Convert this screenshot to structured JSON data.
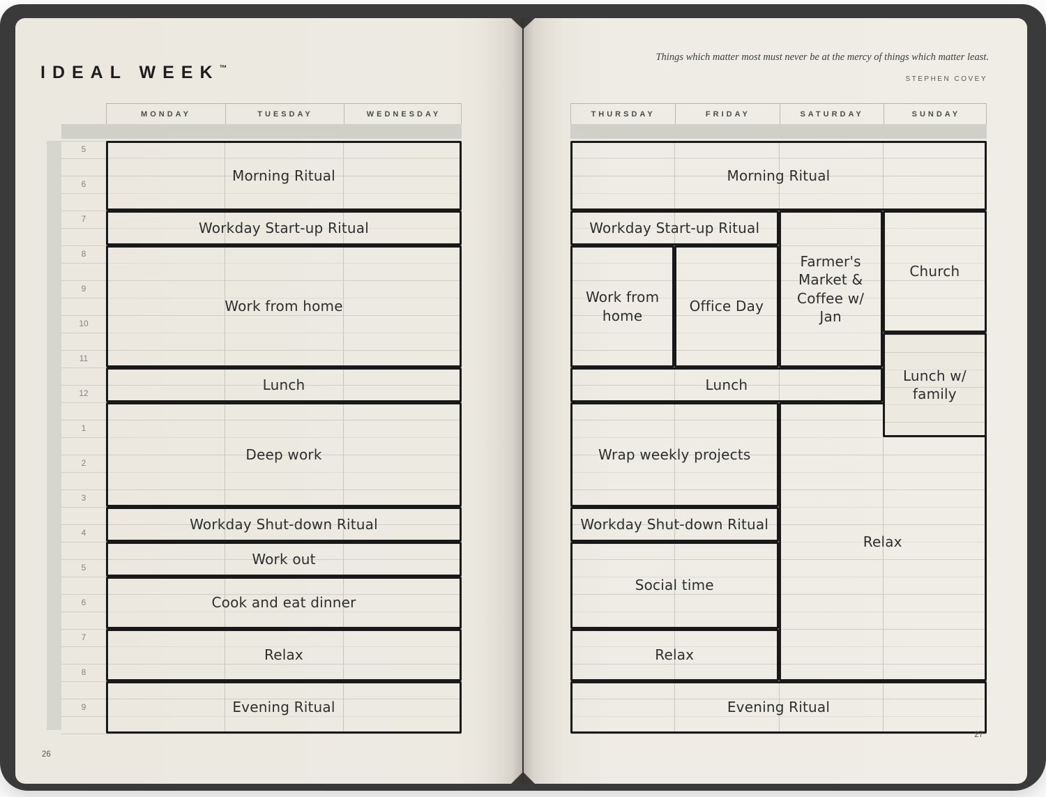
{
  "palette": {
    "cover": "#3a3a3a",
    "page": "#edeae2",
    "block_border": "#191919",
    "handwriting_ink": "#2e2e2e",
    "allday_band": "#d1d0c8",
    "rule_line": "#cfcdc5"
  },
  "left_page": {
    "title": "IDEAL WEEK",
    "title_tm": "™",
    "page_number": "26",
    "day_headers": [
      "MONDAY",
      "TUESDAY",
      "WEDNESDAY"
    ],
    "time_labels": [
      "5",
      "6",
      "7",
      "8",
      "9",
      "10",
      "11",
      "12",
      "1",
      "2",
      "3",
      "4",
      "5",
      "6",
      "7",
      "8",
      "9"
    ],
    "schedule_blocks": [
      {
        "label": "Morning Ritual",
        "col": 0,
        "col_span": 3,
        "row": 0,
        "row_span": 4
      },
      {
        "label": "Workday Start-up Ritual",
        "col": 0,
        "col_span": 3,
        "row": 4,
        "row_span": 2
      },
      {
        "label": "Work from home",
        "col": 0,
        "col_span": 3,
        "row": 6,
        "row_span": 7
      },
      {
        "label": "Lunch",
        "col": 0,
        "col_span": 3,
        "row": 13,
        "row_span": 2
      },
      {
        "label": "Deep work",
        "col": 0,
        "col_span": 3,
        "row": 15,
        "row_span": 6
      },
      {
        "label": "Workday Shut-down Ritual",
        "col": 0,
        "col_span": 3,
        "row": 21,
        "row_span": 2
      },
      {
        "label": "Work out",
        "col": 0,
        "col_span": 3,
        "row": 23,
        "row_span": 2
      },
      {
        "label": "Cook and eat dinner",
        "col": 0,
        "col_span": 3,
        "row": 25,
        "row_span": 3
      },
      {
        "label": "Relax",
        "col": 0,
        "col_span": 3,
        "row": 28,
        "row_span": 3
      },
      {
        "label": "Evening Ritual",
        "col": 0,
        "col_span": 3,
        "row": 31,
        "row_span": 3
      }
    ]
  },
  "right_page": {
    "quote": "Things which matter most must never be at the mercy of things which matter least.",
    "quote_author": "STEPHEN COVEY",
    "page_number": "27",
    "day_headers": [
      "THURSDAY",
      "FRIDAY",
      "SATURDAY",
      "SUNDAY"
    ],
    "schedule_blocks": [
      {
        "label": "Morning Ritual",
        "col": 0,
        "col_span": 4,
        "row": 0,
        "row_span": 4
      },
      {
        "label": "Relax",
        "col": 2,
        "col_span": 2,
        "row": 15,
        "row_span": 16
      },
      {
        "label": "Workday Start-up Ritual",
        "col": 0,
        "col_span": 2,
        "row": 4,
        "row_span": 2
      },
      {
        "label": "Work from home",
        "col": 0,
        "col_span": 1,
        "row": 6,
        "row_span": 7
      },
      {
        "label": "Office Day",
        "col": 1,
        "col_span": 1,
        "row": 6,
        "row_span": 7
      },
      {
        "label": "Farmer's Market & Coffee w/ Jan",
        "col": 2,
        "col_span": 1,
        "row": 4,
        "row_span": 9
      },
      {
        "label": "Church",
        "col": 3,
        "col_span": 1,
        "row": 4,
        "row_span": 7
      },
      {
        "label": "Lunch",
        "col": 0,
        "col_span": 3,
        "row": 13,
        "row_span": 2
      },
      {
        "label": "Lunch w/ family",
        "col": 3,
        "col_span": 1,
        "row": 11,
        "row_span": 6,
        "opaque": true
      },
      {
        "label": "Wrap weekly projects",
        "col": 0,
        "col_span": 2,
        "row": 15,
        "row_span": 6
      },
      {
        "label": "Workday Shut-down Ritual",
        "col": 0,
        "col_span": 2,
        "row": 21,
        "row_span": 2
      },
      {
        "label": "Social time",
        "col": 0,
        "col_span": 2,
        "row": 23,
        "row_span": 5
      },
      {
        "label": "Relax",
        "col": 0,
        "col_span": 2,
        "row": 28,
        "row_span": 3
      },
      {
        "label": "Evening Ritual",
        "col": 0,
        "col_span": 4,
        "row": 31,
        "row_span": 3
      }
    ]
  }
}
